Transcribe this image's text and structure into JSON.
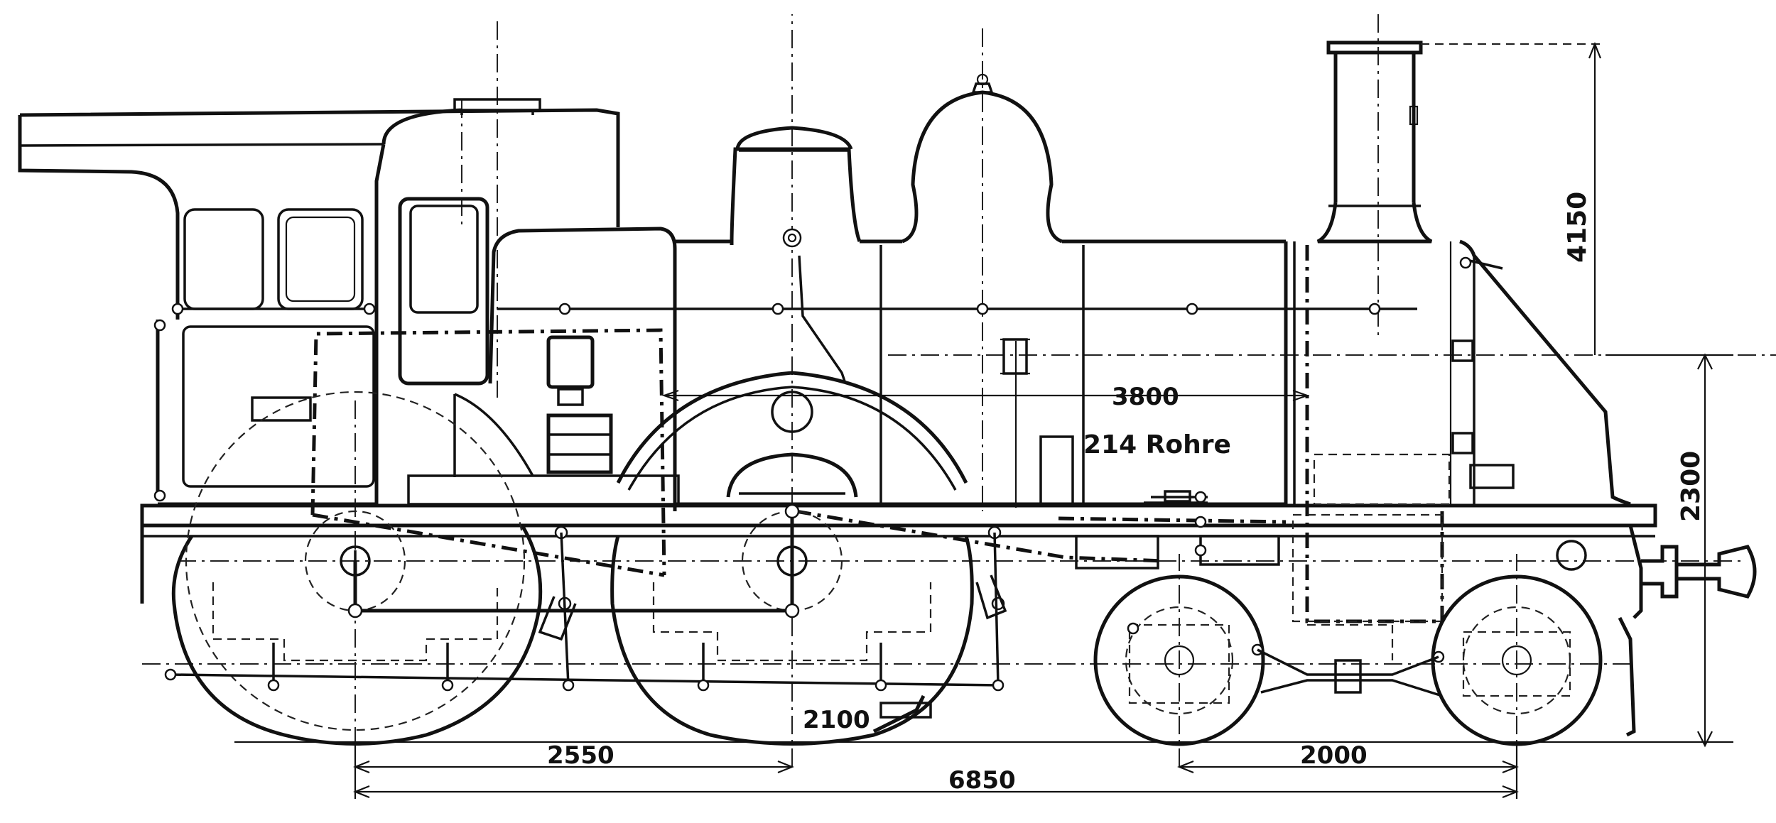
{
  "dimensions": {
    "overall_height": "4150",
    "boiler_center_height": "2300",
    "tube_length": "3800",
    "tube_count": "214 Rohre",
    "driving_wheel_diameter": "2100",
    "coupled_wheelbase": "2550",
    "total_wheelbase": "6850",
    "bogie_wheelbase": "2000"
  }
}
